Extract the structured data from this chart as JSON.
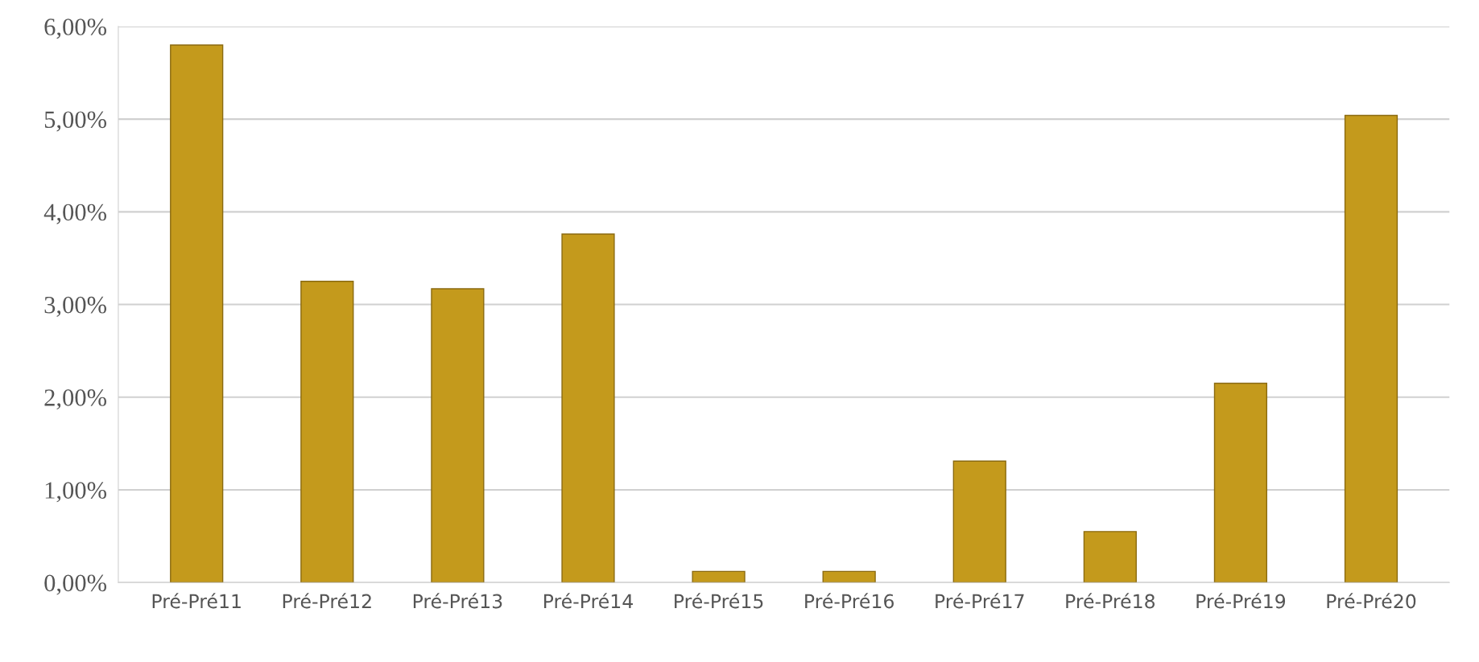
{
  "chart_data": {
    "type": "bar",
    "categories": [
      "Pré-Pré11",
      "Pré-Pré12",
      "Pré-Pré13",
      "Pré-Pré14",
      "Pré-Pré15",
      "Pré-Pré16",
      "Pré-Pré17",
      "Pré-Pré18",
      "Pré-Pré19",
      "Pré-Pré20"
    ],
    "values": [
      5.8,
      3.25,
      3.17,
      3.76,
      0.12,
      0.12,
      1.31,
      0.55,
      2.15,
      5.04
    ],
    "color": "#c49a1c",
    "ylim": [
      0,
      6
    ],
    "yticks": [
      {
        "value": 0,
        "label": "0,00%"
      },
      {
        "value": 1,
        "label": "1,00%"
      },
      {
        "value": 2,
        "label": "2,00%"
      },
      {
        "value": 3,
        "label": "3,00%"
      },
      {
        "value": 4,
        "label": "4,00%"
      },
      {
        "value": 5,
        "label": "5,00%"
      },
      {
        "value": 6,
        "label": "6,00%"
      }
    ],
    "grid": "y",
    "legend": false
  }
}
